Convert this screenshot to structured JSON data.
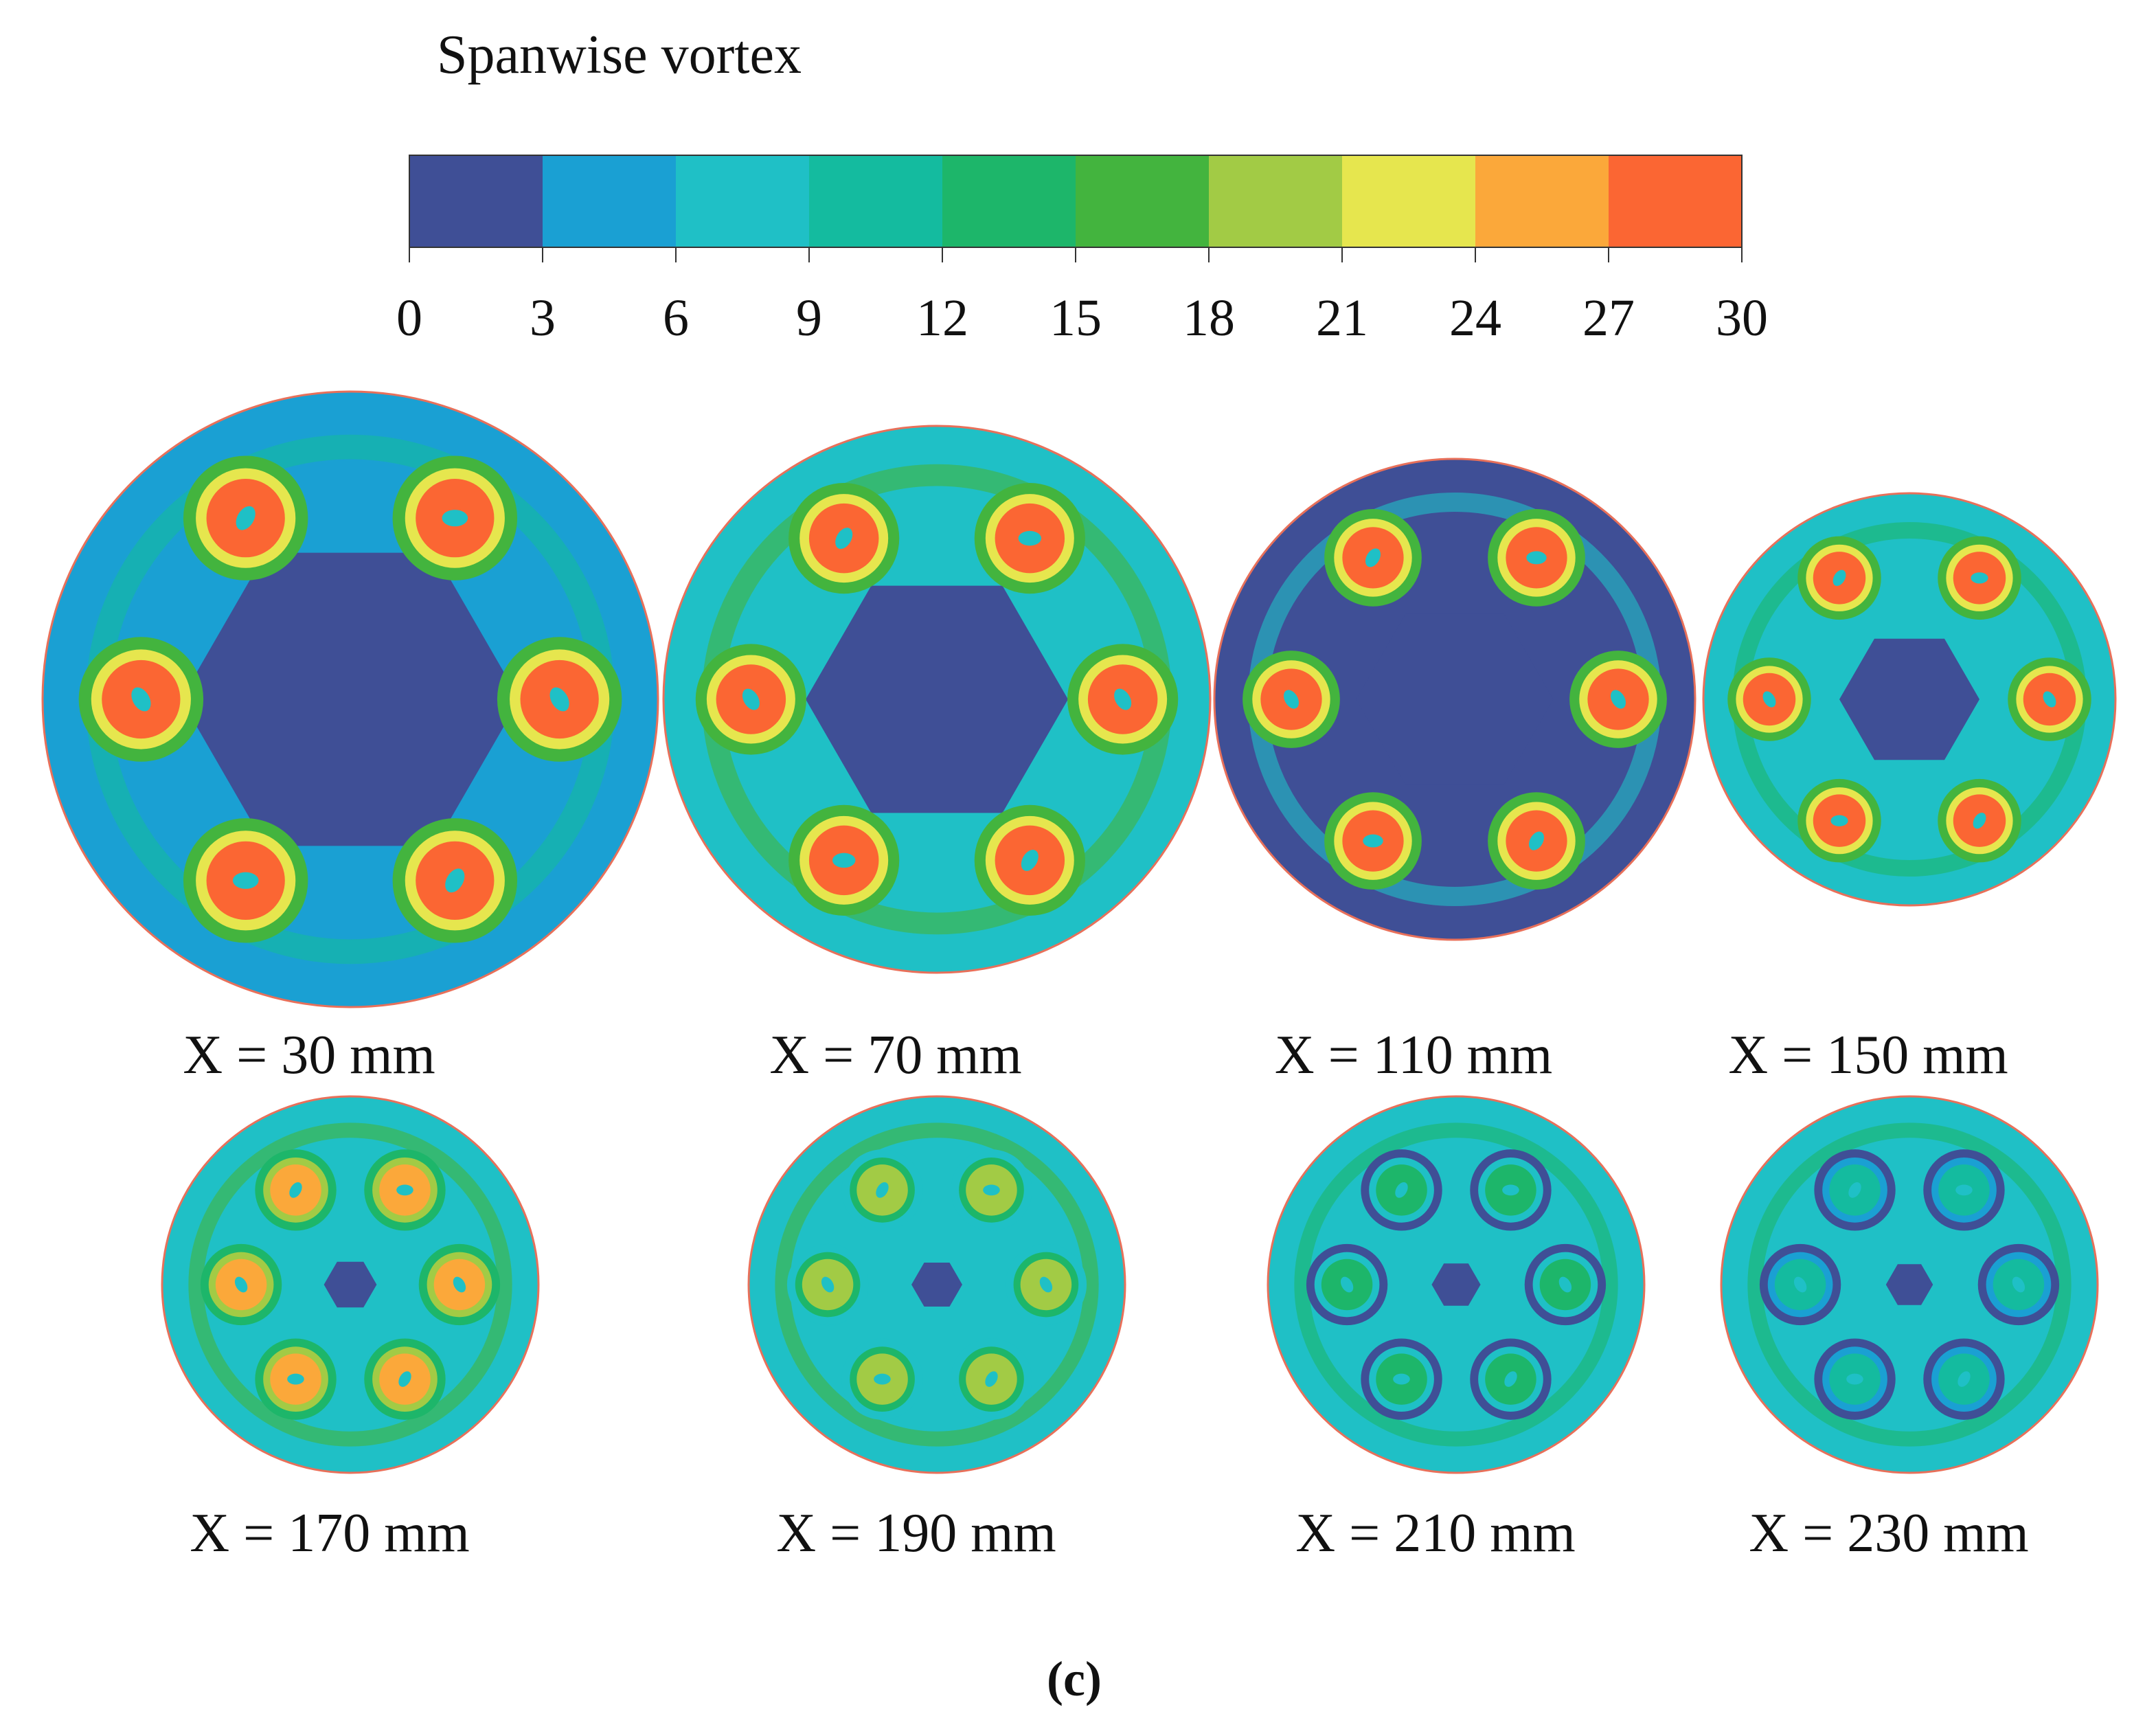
{
  "colorbar": {
    "title": "Spanwise vortex",
    "ticks": [
      "0",
      "3",
      "6",
      "9",
      "12",
      "15",
      "18",
      "21",
      "24",
      "27",
      "30"
    ],
    "colors": [
      "#3f4f96",
      "#1aa0d3",
      "#1fc0c6",
      "#14bb9f",
      "#1db66a",
      "#43b43e",
      "#a2cb45",
      "#e6e64e",
      "#fba83a",
      "#fb6633"
    ]
  },
  "sections": [
    {
      "label": "X = 30 mm",
      "n_cores": 6,
      "core_level": 0.95,
      "center_level": 0.0,
      "background_level": 0.1
    },
    {
      "label": "X = 70 mm",
      "n_cores": 6,
      "core_level": 0.95,
      "center_level": 0.0,
      "background_level": 0.25
    },
    {
      "label": "X = 110 mm",
      "n_cores": 6,
      "core_level": 0.95,
      "center_level": 0.0,
      "background_level": 0.0
    },
    {
      "label": "X = 150 mm",
      "n_cores": 6,
      "core_level": 0.95,
      "center_level": 0.0,
      "background_level": 0.2
    },
    {
      "label": "X = 170 mm",
      "n_cores": 6,
      "core_level": 0.85,
      "center_level": 0.0,
      "background_level": 0.25
    },
    {
      "label": "X = 190 mm",
      "n_cores": 6,
      "core_level": 0.65,
      "center_level": 0.0,
      "background_level": 0.25
    },
    {
      "label": "X = 210 mm",
      "n_cores": 6,
      "core_level": 0.45,
      "center_level": 0.0,
      "background_level": 0.2
    },
    {
      "label": "X = 230 mm",
      "n_cores": 6,
      "core_level": 0.3,
      "center_level": 0.0,
      "background_level": 0.2
    }
  ],
  "panel_label": "(c)"
}
